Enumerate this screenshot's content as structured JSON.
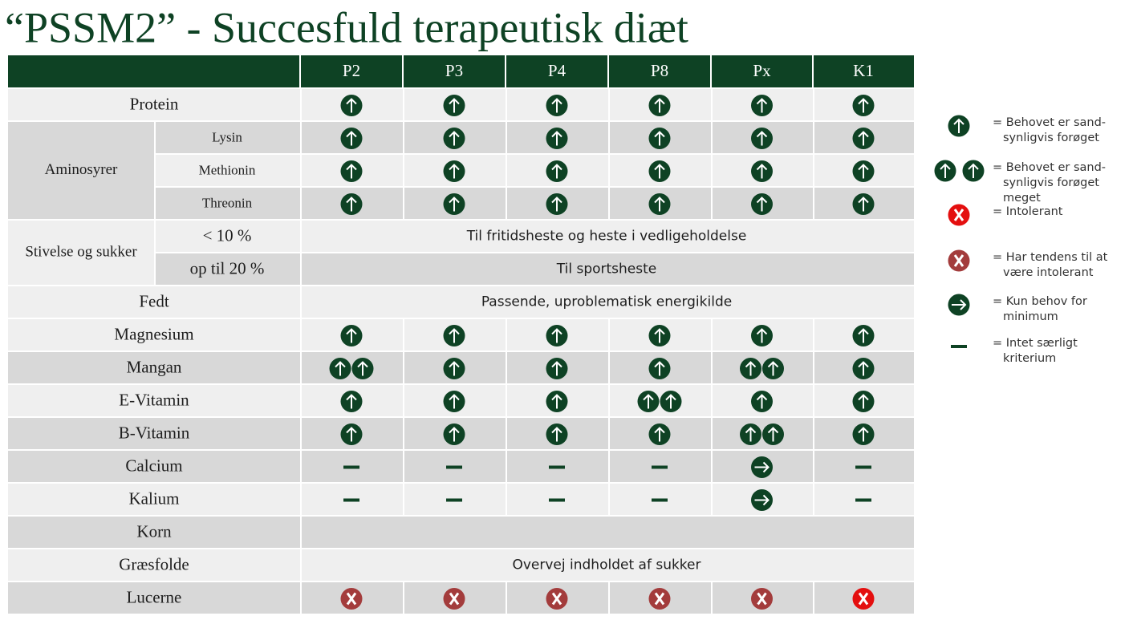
{
  "header": {
    "title": "“PSSM2” - Succesfuld terapeutisk diæt"
  },
  "table": {
    "columns": [
      "P2",
      "P3",
      "P4",
      "P8",
      "Px",
      "K1"
    ],
    "groups": [
      {
        "label": "Aminosyrer"
      },
      {
        "label": "Stivelse og sukker"
      }
    ],
    "rows": [
      {
        "label": "Protein"
      },
      {
        "label": "Lysin"
      },
      {
        "label": "Methionin"
      },
      {
        "label": "Threonin"
      },
      {
        "label": "< 10 %",
        "note": "Til fritidsheste og heste i vedligeholdelse"
      },
      {
        "label": "op til 20 %",
        "note": "Til sportsheste"
      },
      {
        "label": "Fedt",
        "note": "Passende, uproblematisk energikilde"
      },
      {
        "label": "Magnesium"
      },
      {
        "label": "Mangan"
      },
      {
        "label": "E-Vitamin"
      },
      {
        "label": "B-Vitamin"
      },
      {
        "label": "Calcium"
      },
      {
        "label": "Kalium"
      },
      {
        "label": "Korn"
      },
      {
        "label": "Græsfolde",
        "note": "Overvej indholdet af sukker"
      },
      {
        "label": "Lucerne"
      }
    ]
  },
  "legend": [
    {
      "lines": [
        "= Behovet er sand-",
        "synligvis forøget"
      ]
    },
    {
      "lines": [
        "= Behovet er sand-",
        "synligvis forøget",
        "meget"
      ]
    },
    {
      "lines": [
        "= Intolerant"
      ]
    },
    {
      "lines": [
        "= Har tendens til at",
        "være intolerant"
      ]
    },
    {
      "lines": [
        "= Kun behov for",
        "minimum"
      ]
    },
    {
      "lines": [
        "= Intet særligt",
        "kriterium"
      ]
    }
  ]
}
